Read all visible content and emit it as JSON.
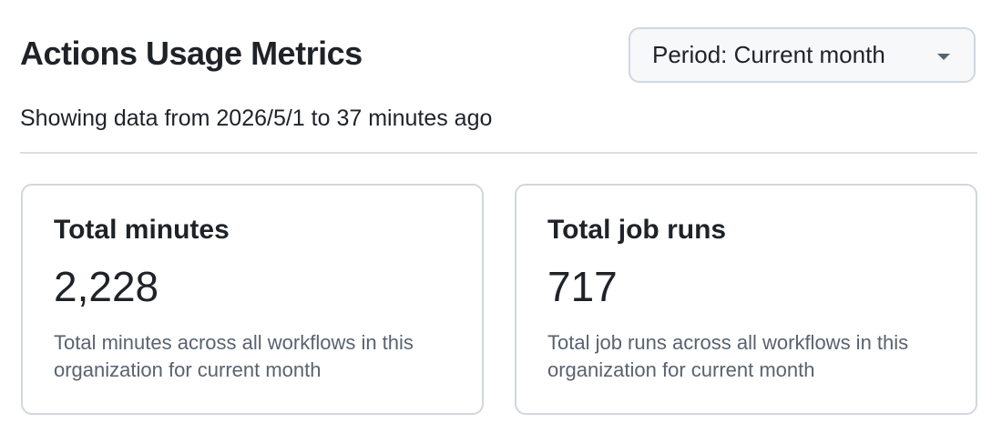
{
  "header": {
    "title": "Actions Usage Metrics",
    "period_button": "Period: Current month",
    "subtitle": "Showing data from 2026/5/1 to 37 minutes ago"
  },
  "cards": [
    {
      "title": "Total minutes",
      "value": "2,228",
      "description": "Total minutes across all workflows in this organization for current month"
    },
    {
      "title": "Total job runs",
      "value": "717",
      "description": "Total job runs across all workflows in this organization for current month"
    }
  ]
}
